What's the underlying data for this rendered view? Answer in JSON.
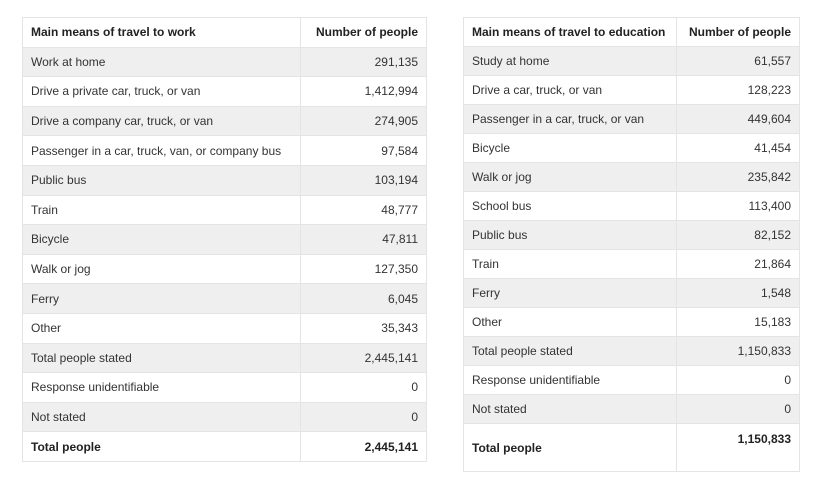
{
  "work": {
    "headers": [
      "Main means of travel to work",
      "Number of people"
    ],
    "rows": [
      [
        "Work at home",
        "291,135"
      ],
      [
        "Drive a private car, truck, or van",
        "1,412,994"
      ],
      [
        "Drive a company car, truck, or van",
        "274,905"
      ],
      [
        "Passenger in a car, truck, van, or company bus",
        "97,584"
      ],
      [
        "Public bus",
        "103,194"
      ],
      [
        "Train",
        "48,777"
      ],
      [
        "Bicycle",
        "47,811"
      ],
      [
        "Walk or jog",
        "127,350"
      ],
      [
        "Ferry",
        "6,045"
      ],
      [
        "Other",
        "35,343"
      ],
      [
        "Total people stated",
        "2,445,141"
      ],
      [
        "Response unidentifiable",
        "0"
      ],
      [
        "Not stated",
        "0"
      ]
    ],
    "total": [
      "Total people",
      "2,445,141"
    ]
  },
  "education": {
    "headers": [
      "Main means of travel to education",
      "Number of people"
    ],
    "rows": [
      [
        "Study at home",
        "61,557"
      ],
      [
        "Drive a car, truck, or van",
        "128,223"
      ],
      [
        "Passenger in a car, truck, or van",
        "449,604"
      ],
      [
        "Bicycle",
        "41,454"
      ],
      [
        "Walk or jog",
        "235,842"
      ],
      [
        "School bus",
        "113,400"
      ],
      [
        "Public bus",
        "82,152"
      ],
      [
        "Train",
        "21,864"
      ],
      [
        "Ferry",
        "1,548"
      ],
      [
        "Other",
        "15,183"
      ],
      [
        "Total people stated",
        "1,150,833"
      ],
      [
        "Response unidentifiable",
        "0"
      ],
      [
        "Not stated",
        "0"
      ]
    ],
    "total": [
      "Total people",
      "1,150,833"
    ]
  }
}
